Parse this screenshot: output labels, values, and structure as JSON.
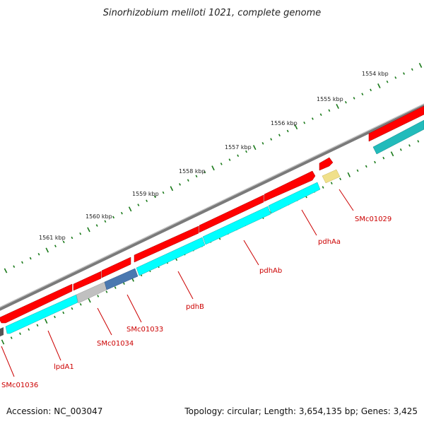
{
  "title": "Sinorhizobium meliloti 1021, complete genome",
  "accession": "Accession: NC_003047",
  "topology_info": "Topology: circular; Length: 3,654,135 bp; Genes: 3,425",
  "colors": {
    "backbone": "#7a7a7a",
    "cds": "#ff0000",
    "gene": "#00ffff",
    "gene_dark": "#22bbbb",
    "label": "#cc0000",
    "tick": "#1a7a1a",
    "selected": "#4a78b0",
    "pseudo": "#c0c0c0",
    "rna": "#f0e08a",
    "dark_small": "#555555"
  },
  "scale_ticks": [
    "1554 kbp",
    "1555 kbp",
    "1556 kbp",
    "1557 kbp",
    "1558 kbp",
    "1559 kbp",
    "1560 kbp",
    "1561 kbp"
  ],
  "gene_labels": [
    "SMc01029",
    "pdhAa",
    "pdhAb",
    "pdhB",
    "SMc01033",
    "SMc01034",
    "lpdA1",
    "SMc01036"
  ]
}
